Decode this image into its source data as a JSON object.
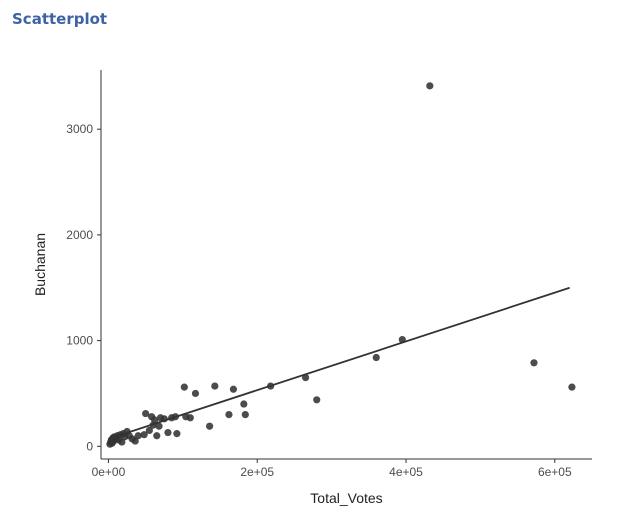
{
  "banner_text": "",
  "page": {
    "title": "Scatterplot"
  },
  "chart_data": {
    "type": "scatter",
    "xlabel": "Total_Votes",
    "ylabel": "Buchanan",
    "xlim": [
      -10000,
      650000
    ],
    "ylim": [
      -120,
      3560
    ],
    "x_ticks": [
      {
        "value": 0,
        "label": "0e+00"
      },
      {
        "value": 200000,
        "label": "2e+05"
      },
      {
        "value": 400000,
        "label": "4e+05"
      },
      {
        "value": 600000,
        "label": "6e+05"
      }
    ],
    "y_ticks": [
      {
        "value": 0,
        "label": "0"
      },
      {
        "value": 1000,
        "label": "1000"
      },
      {
        "value": 2000,
        "label": "2000"
      },
      {
        "value": 3000,
        "label": "3000"
      }
    ],
    "grid": false,
    "point_color": "#333333",
    "line_color": "#333333",
    "points": [
      {
        "x": 2000,
        "y": 20
      },
      {
        "x": 3000,
        "y": 40
      },
      {
        "x": 4000,
        "y": 60
      },
      {
        "x": 5000,
        "y": 30
      },
      {
        "x": 6000,
        "y": 80
      },
      {
        "x": 7000,
        "y": 50
      },
      {
        "x": 8000,
        "y": 90
      },
      {
        "x": 10000,
        "y": 70
      },
      {
        "x": 12000,
        "y": 100
      },
      {
        "x": 14000,
        "y": 60
      },
      {
        "x": 16000,
        "y": 110
      },
      {
        "x": 18000,
        "y": 40
      },
      {
        "x": 20000,
        "y": 120
      },
      {
        "x": 22000,
        "y": 90
      },
      {
        "x": 25000,
        "y": 140
      },
      {
        "x": 28000,
        "y": 100
      },
      {
        "x": 32000,
        "y": 70
      },
      {
        "x": 36000,
        "y": 50
      },
      {
        "x": 40000,
        "y": 100
      },
      {
        "x": 48000,
        "y": 110
      },
      {
        "x": 50000,
        "y": 310
      },
      {
        "x": 55000,
        "y": 150
      },
      {
        "x": 58000,
        "y": 280
      },
      {
        "x": 60000,
        "y": 200
      },
      {
        "x": 62000,
        "y": 250
      },
      {
        "x": 65000,
        "y": 100
      },
      {
        "x": 68000,
        "y": 190
      },
      {
        "x": 70000,
        "y": 270
      },
      {
        "x": 75000,
        "y": 260
      },
      {
        "x": 80000,
        "y": 130
      },
      {
        "x": 85000,
        "y": 270
      },
      {
        "x": 90000,
        "y": 280
      },
      {
        "x": 92000,
        "y": 120
      },
      {
        "x": 102000,
        "y": 560
      },
      {
        "x": 104000,
        "y": 280
      },
      {
        "x": 110000,
        "y": 270
      },
      {
        "x": 117000,
        "y": 500
      },
      {
        "x": 136000,
        "y": 190
      },
      {
        "x": 143000,
        "y": 570
      },
      {
        "x": 162000,
        "y": 300
      },
      {
        "x": 168000,
        "y": 540
      },
      {
        "x": 182000,
        "y": 400
      },
      {
        "x": 184000,
        "y": 300
      },
      {
        "x": 218000,
        "y": 570
      },
      {
        "x": 265000,
        "y": 650
      },
      {
        "x": 280000,
        "y": 440
      },
      {
        "x": 360000,
        "y": 840
      },
      {
        "x": 395000,
        "y": 1010
      },
      {
        "x": 432000,
        "y": 3410
      },
      {
        "x": 572000,
        "y": 790
      },
      {
        "x": 623000,
        "y": 560
      }
    ],
    "fit_line": {
      "x": [
        0,
        620000
      ],
      "y": [
        70,
        1500
      ]
    }
  }
}
